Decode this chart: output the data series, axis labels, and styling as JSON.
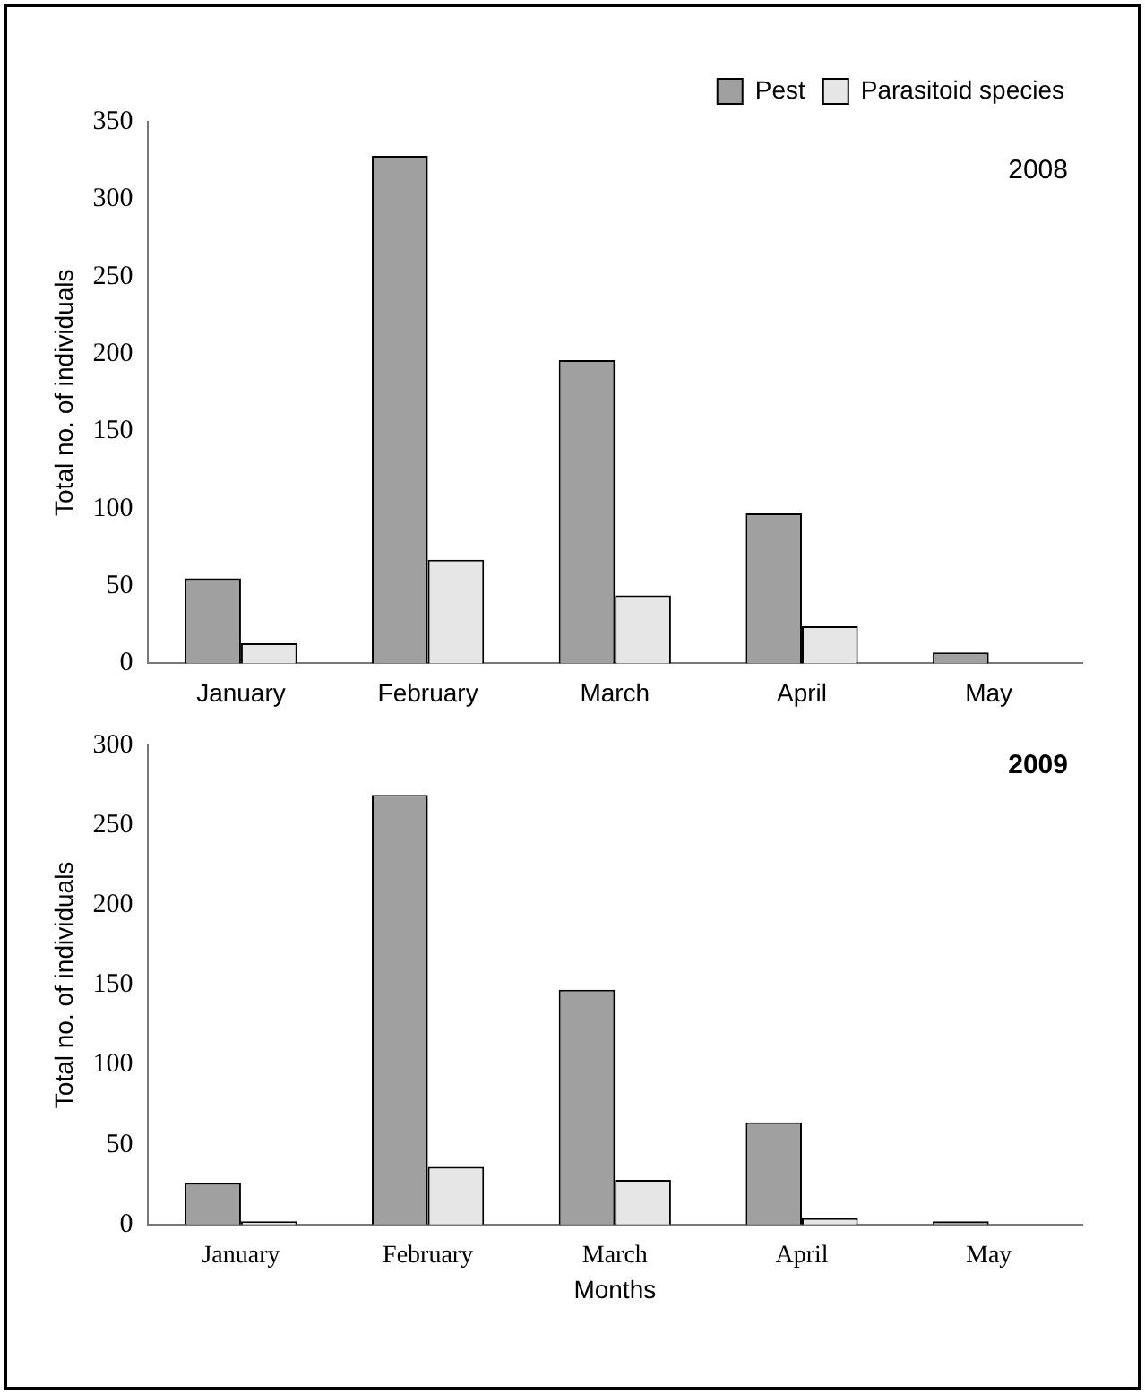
{
  "chart_data": [
    {
      "type": "bar",
      "categories": [
        "January",
        "February",
        "March",
        "April",
        "May"
      ],
      "ylabel": "Total no. of individuals",
      "ylim": [
        0,
        350
      ],
      "yticks": [
        0,
        50,
        100,
        150,
        200,
        250,
        300,
        350
      ],
      "legend": "top right",
      "annotations": [
        "2008"
      ],
      "series": [
        {
          "name": "Pest",
          "color": "#a0a0a0",
          "values": [
            55,
            328,
            196,
            97,
            7
          ]
        },
        {
          "name": "Parasitoid species",
          "color": "#e6e6e6",
          "values": [
            13,
            67,
            44,
            24,
            0
          ]
        }
      ]
    },
    {
      "type": "bar",
      "categories": [
        "January",
        "February",
        "March",
        "April",
        "May"
      ],
      "xlabel": "Months",
      "ylabel": "Total no. of individuals",
      "ylim": [
        0,
        300
      ],
      "yticks": [
        0,
        50,
        100,
        150,
        200,
        250,
        300
      ],
      "annotations": [
        "2009"
      ],
      "series": [
        {
          "color": "#a0a0a0",
          "values": [
            26,
            269,
            147,
            64,
            2
          ]
        },
        {
          "color": "#e6e6e6",
          "values": [
            2,
            36,
            28,
            4,
            0
          ]
        }
      ]
    }
  ]
}
